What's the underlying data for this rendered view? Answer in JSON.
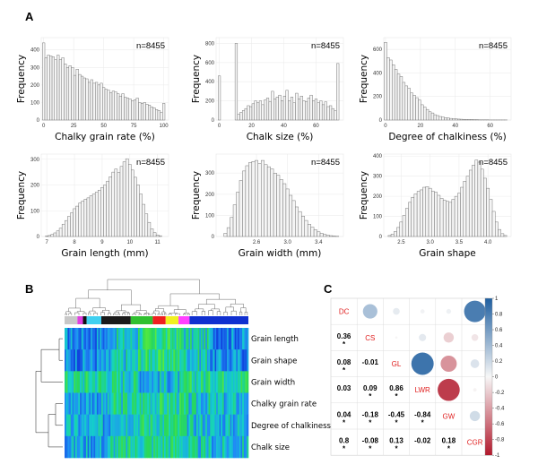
{
  "panels": {
    "a": "A",
    "b": "B",
    "c": "C"
  },
  "chart_data": [
    {
      "type": "bar",
      "subtype": "histogram",
      "xlabel": "Chalky grain rate (%)",
      "ylabel": "Frequency",
      "annotation": "n=8455",
      "xlim": [
        -2,
        104
      ],
      "ylim": [
        0,
        470
      ],
      "xticks": [
        0,
        25,
        50,
        75,
        100
      ],
      "yticks": [
        0,
        100,
        200,
        300,
        400
      ],
      "x": [
        0,
        2,
        4,
        6,
        8,
        10,
        12,
        14,
        16,
        18,
        20,
        22,
        24,
        26,
        28,
        30,
        32,
        34,
        36,
        38,
        40,
        42,
        44,
        46,
        48,
        50,
        52,
        54,
        56,
        58,
        60,
        62,
        64,
        66,
        68,
        70,
        72,
        74,
        76,
        78,
        80,
        82,
        84,
        86,
        88,
        90,
        92,
        94,
        96,
        98,
        100
      ],
      "values": [
        440,
        355,
        370,
        365,
        360,
        345,
        370,
        345,
        355,
        320,
        300,
        310,
        300,
        255,
        290,
        260,
        250,
        240,
        235,
        215,
        230,
        210,
        215,
        200,
        210,
        185,
        175,
        170,
        155,
        165,
        160,
        150,
        135,
        150,
        130,
        125,
        120,
        110,
        115,
        125,
        100,
        95,
        100,
        90,
        85,
        75,
        70,
        60,
        55,
        45,
        95
      ]
    },
    {
      "type": "bar",
      "subtype": "histogram",
      "xlabel": "Chalk size (%)",
      "ylabel": "Frequency",
      "annotation": "n=8455",
      "xlim": [
        -2,
        77
      ],
      "ylim": [
        0,
        860
      ],
      "xticks": [
        0,
        20,
        40,
        60
      ],
      "yticks": [
        0,
        200,
        400,
        600,
        800
      ],
      "x": [
        0,
        1.5,
        3,
        4.5,
        6,
        7.5,
        9,
        10.5,
        12,
        13.5,
        15,
        16.5,
        18,
        19.5,
        21,
        22.5,
        24,
        25.5,
        27,
        28.5,
        30,
        31.5,
        33,
        34.5,
        36,
        37.5,
        39,
        40.5,
        42,
        43.5,
        45,
        46.5,
        48,
        49.5,
        51,
        52.5,
        54,
        55.5,
        57,
        58.5,
        60,
        61.5,
        63,
        64.5,
        66,
        67.5,
        69,
        70.5,
        72,
        73.5
      ],
      "values": [
        460,
        0,
        0,
        0,
        0,
        0,
        0,
        800,
        60,
        80,
        100,
        120,
        150,
        140,
        170,
        200,
        180,
        200,
        160,
        210,
        230,
        190,
        300,
        220,
        240,
        260,
        200,
        250,
        310,
        200,
        240,
        180,
        280,
        220,
        250,
        200,
        190,
        230,
        260,
        200,
        220,
        180,
        200,
        160,
        190,
        140,
        150,
        120,
        100,
        590
      ]
    },
    {
      "type": "bar",
      "subtype": "histogram",
      "xlabel": "Degree of chalkiness (%)",
      "ylabel": "Frequency",
      "annotation": "n=8455",
      "xlim": [
        -1,
        72
      ],
      "ylim": [
        0,
        700
      ],
      "xticks": [
        0,
        20,
        40,
        60
      ],
      "yticks": [
        0,
        200,
        400,
        600
      ],
      "x": [
        0,
        1.5,
        3,
        4.5,
        6,
        7.5,
        9,
        10.5,
        12,
        13.5,
        15,
        16.5,
        18,
        19.5,
        21,
        22.5,
        24,
        25.5,
        27,
        28.5,
        30,
        31.5,
        33,
        34.5,
        36,
        37.5,
        39,
        40.5,
        42,
        43.5,
        45,
        46.5,
        48,
        49.5,
        51,
        52.5,
        54,
        55.5,
        57,
        58.5,
        60,
        61.5,
        63,
        64.5,
        66,
        67.5,
        69
      ],
      "values": [
        660,
        530,
        510,
        470,
        430,
        390,
        370,
        320,
        290,
        270,
        230,
        210,
        190,
        170,
        130,
        110,
        90,
        70,
        60,
        45,
        38,
        30,
        25,
        20,
        17,
        14,
        12,
        10,
        8,
        7,
        6,
        5,
        4,
        4,
        3,
        3,
        2,
        2,
        2,
        2,
        1,
        1,
        1,
        1,
        1,
        1,
        1
      ]
    },
    {
      "type": "bar",
      "subtype": "histogram",
      "xlabel": "Grain length (mm)",
      "ylabel": "Frequency",
      "annotation": "n=8455",
      "xlim": [
        6.8,
        11.4
      ],
      "ylim": [
        0,
        320
      ],
      "xticks": [
        7,
        8,
        9,
        10,
        11
      ],
      "yticks": [
        0,
        100,
        200,
        300
      ],
      "x": [
        7,
        7.1,
        7.2,
        7.3,
        7.4,
        7.5,
        7.6,
        7.7,
        7.8,
        7.9,
        8,
        8.1,
        8.2,
        8.3,
        8.4,
        8.5,
        8.6,
        8.7,
        8.8,
        8.9,
        9,
        9.1,
        9.2,
        9.3,
        9.4,
        9.5,
        9.6,
        9.7,
        9.8,
        9.9,
        10,
        10.1,
        10.2,
        10.3,
        10.4,
        10.5,
        10.6,
        10.7,
        10.8,
        10.9,
        11,
        11.1
      ],
      "values": [
        2,
        4,
        8,
        14,
        22,
        32,
        48,
        62,
        78,
        92,
        108,
        118,
        130,
        138,
        145,
        150,
        158,
        165,
        172,
        180,
        190,
        200,
        215,
        232,
        250,
        262,
        248,
        272,
        290,
        302,
        280,
        258,
        230,
        200,
        165,
        125,
        88,
        55,
        30,
        15,
        6,
        3
      ]
    },
    {
      "type": "bar",
      "subtype": "histogram",
      "xlabel": "Grain width (mm)",
      "ylabel": "Frequency",
      "annotation": "n=8455",
      "xlim": [
        2.08,
        3.72
      ],
      "ylim": [
        0,
        390
      ],
      "xticks": [
        2.6,
        3.0,
        3.4
      ],
      "yticks": [
        0,
        100,
        200,
        300
      ],
      "x": [
        2.2,
        2.24,
        2.28,
        2.32,
        2.36,
        2.4,
        2.44,
        2.48,
        2.52,
        2.56,
        2.6,
        2.64,
        2.68,
        2.72,
        2.76,
        2.8,
        2.84,
        2.88,
        2.92,
        2.96,
        3,
        3.04,
        3.08,
        3.12,
        3.16,
        3.2,
        3.24,
        3.28,
        3.32,
        3.36,
        3.4,
        3.44,
        3.48,
        3.52,
        3.56,
        3.6,
        3.64
      ],
      "values": [
        15,
        42,
        90,
        150,
        210,
        265,
        310,
        335,
        350,
        355,
        360,
        345,
        360,
        340,
        330,
        320,
        300,
        290,
        270,
        250,
        225,
        195,
        170,
        140,
        118,
        96,
        76,
        58,
        44,
        32,
        22,
        15,
        10,
        6,
        4,
        2,
        1
      ]
    },
    {
      "type": "bar",
      "subtype": "histogram",
      "xlabel": "Grain shape",
      "ylabel": "Frequency",
      "annotation": "n=8455",
      "xlim": [
        2.2,
        4.4
      ],
      "ylim": [
        0,
        410
      ],
      "xticks": [
        2.5,
        3.0,
        3.5,
        4.0
      ],
      "yticks": [
        0,
        100,
        200,
        300,
        400
      ],
      "x": [
        2.3,
        2.35,
        2.4,
        2.45,
        2.5,
        2.55,
        2.6,
        2.65,
        2.7,
        2.75,
        2.8,
        2.85,
        2.9,
        2.95,
        3,
        3.05,
        3.1,
        3.15,
        3.2,
        3.25,
        3.3,
        3.35,
        3.4,
        3.45,
        3.5,
        3.55,
        3.6,
        3.65,
        3.7,
        3.75,
        3.8,
        3.85,
        3.9,
        3.95,
        4,
        4.05,
        4.1,
        4.15,
        4.2,
        4.25,
        4.3
      ],
      "values": [
        5,
        12,
        25,
        45,
        72,
        105,
        140,
        170,
        195,
        212,
        225,
        232,
        245,
        248,
        240,
        225,
        220,
        205,
        190,
        180,
        175,
        170,
        185,
        200,
        215,
        245,
        275,
        300,
        330,
        355,
        380,
        370,
        335,
        290,
        240,
        185,
        125,
        72,
        35,
        14,
        5
      ]
    },
    {
      "type": "heatmap",
      "row_labels": [
        "Grain length",
        "Grain shape",
        "Grain width",
        "Chalky grain rate",
        "Degree of chalkiness",
        "Chalk size"
      ],
      "group_colors": [
        "#c8c8c8",
        "#e040e0",
        "#111111",
        "#40d0f0",
        "#1a1a1a",
        "#30c030",
        "#f02020",
        "#f0f020",
        "#ff40ff",
        "#1030d0"
      ]
    },
    {
      "type": "table",
      "subtype": "correlation-matrix",
      "labels": [
        "DC",
        "CS",
        "GL",
        "LWR",
        "GW",
        "CGR"
      ],
      "matrix": [
        [
          1,
          0.36,
          0.08,
          0.03,
          0.04,
          0.8
        ],
        [
          0.36,
          1,
          -0.01,
          0.09,
          -0.18,
          -0.08
        ],
        [
          0.08,
          -0.01,
          1,
          0.86,
          -0.45,
          0.13
        ],
        [
          0.03,
          0.09,
          0.86,
          1,
          -0.84,
          -0.02
        ],
        [
          0.04,
          -0.18,
          -0.45,
          -0.84,
          1,
          0.18
        ],
        [
          0.8,
          -0.08,
          0.13,
          -0.02,
          0.18,
          1
        ]
      ],
      "lower_text": [
        [
          "0.36"
        ],
        [
          "0.08",
          "-0.01"
        ],
        [
          "0.03",
          "0.09",
          "0.86"
        ],
        [
          "0.04",
          "-0.18",
          "-0.45",
          "-0.84"
        ],
        [
          "0.8",
          "-0.08",
          "0.13",
          "-0.02",
          "0.18"
        ]
      ],
      "significance": [
        [
          true
        ],
        [
          true,
          false
        ],
        [
          false,
          true,
          true
        ],
        [
          true,
          true,
          true,
          true
        ],
        [
          true,
          true,
          true,
          false,
          true
        ]
      ],
      "colorbar_ticks": [
        "1",
        "0.8",
        "0.6",
        "0.4",
        "0.2",
        "0",
        "-0.2",
        "-0.4",
        "-0.6",
        "-0.8",
        "-1"
      ],
      "colors": {
        "positive": "#1f5fa0",
        "negative": "#b2182b",
        "neutral": "#f7f7f7"
      }
    }
  ]
}
